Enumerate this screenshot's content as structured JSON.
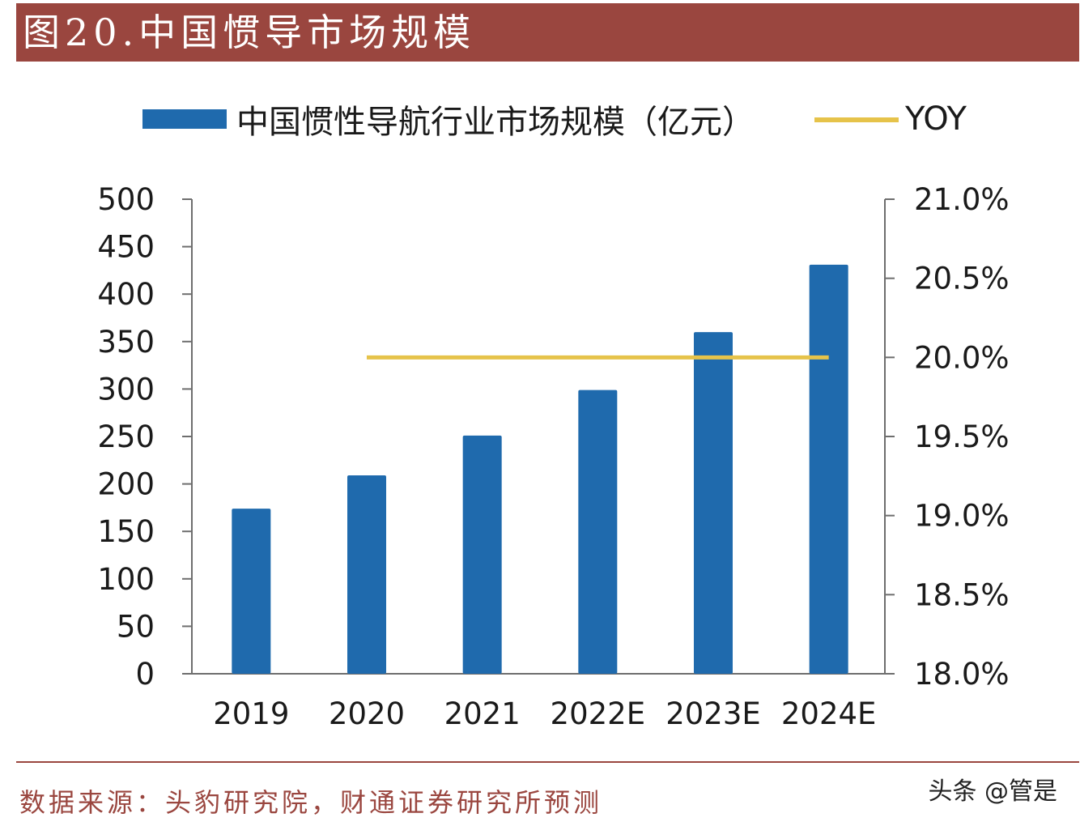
{
  "header": {
    "title": "图20.中国惯导市场规模"
  },
  "footer": {
    "source": "数据来源：头豹研究院，财通证券研究所预测",
    "watermark": "头条 @管是"
  },
  "colors": {
    "header_bg": "#9a463f",
    "bar": "#1f6aad",
    "yoy_line": "#e6c34a",
    "axis": "#6e6e6e"
  },
  "chart_data": {
    "type": "bar",
    "categories": [
      "2019",
      "2020",
      "2021",
      "2022E",
      "2023E",
      "2024E"
    ],
    "series": [
      {
        "name": "中国惯性导航行业市场规模（亿元）",
        "type": "bar",
        "axis": "left",
        "values": [
          174,
          209,
          251,
          299,
          360,
          431
        ]
      },
      {
        "name": "YOY",
        "type": "line",
        "axis": "right",
        "values": [
          null,
          20.0,
          20.0,
          20.0,
          20.0,
          20.0
        ]
      }
    ],
    "left_axis": {
      "ylim": [
        0,
        500
      ],
      "ticks": [
        "0",
        "50",
        "100",
        "150",
        "200",
        "250",
        "300",
        "350",
        "400",
        "450",
        "500"
      ]
    },
    "right_axis": {
      "ylim": [
        18.0,
        21.0
      ],
      "ticks": [
        "18.0%",
        "18.5%",
        "19.0%",
        "19.5%",
        "20.0%",
        "20.5%",
        "21.0%"
      ]
    },
    "legend_position": "top",
    "grid": false
  }
}
